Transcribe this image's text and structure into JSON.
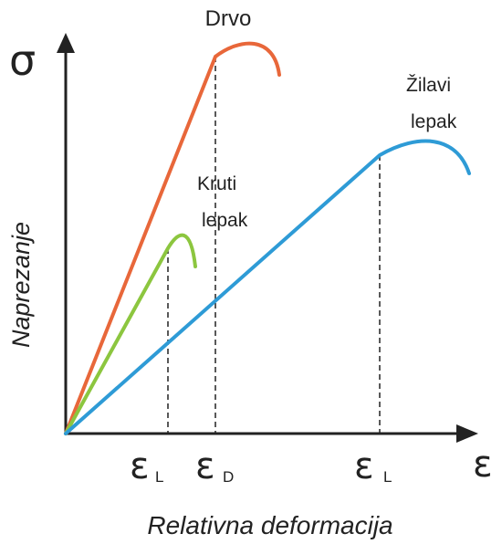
{
  "axes": {
    "y_symbol": "σ",
    "x_symbol": "ε",
    "y_title": "Naprezanje",
    "x_title": "Relativna deformacija"
  },
  "curves": {
    "wood": {
      "label": "Drvo",
      "color": "#e8673a"
    },
    "rigid_adhesive": {
      "label_line1": "Kruti",
      "label_line2": "lepak",
      "color": "#8cc63f"
    },
    "tough_adhesive": {
      "label_line1": "Žilavi",
      "label_line2": "lepak",
      "color": "#2e9bd6"
    }
  },
  "strain_labels": {
    "rigid": {
      "main": "ε",
      "sub": "L"
    },
    "wood": {
      "main": "ε",
      "sub": "D"
    },
    "tough": {
      "main": "ε",
      "sub": "L"
    }
  }
}
